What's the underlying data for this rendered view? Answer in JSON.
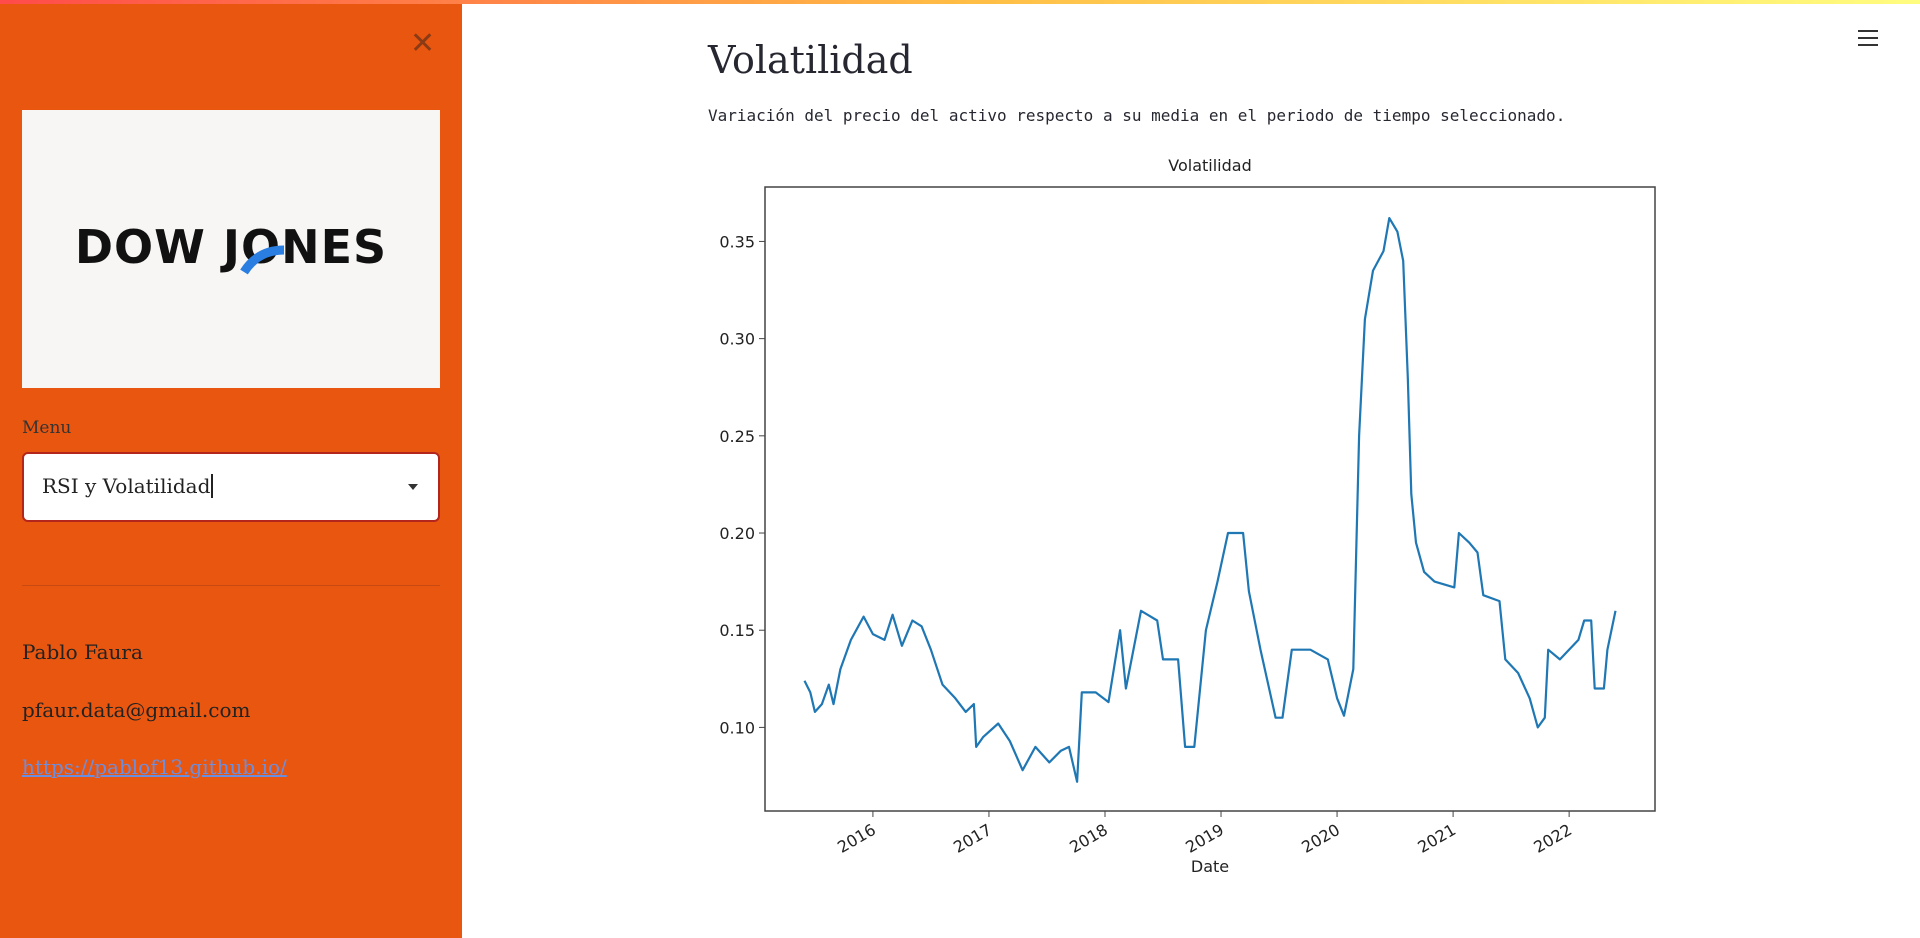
{
  "sidebar": {
    "logo": "DOW JONES",
    "menu_label": "Menu",
    "menu_value": "RSI y Volatilidad",
    "author": "Pablo Faura",
    "email": "pfaur.data@gmail.com",
    "link": "https://pablof13.github.io/"
  },
  "main": {
    "title": "Volatilidad",
    "description": "Variación del precio del activo respecto a su media en el periodo de tiempo seleccionado."
  },
  "chart_data": {
    "type": "line",
    "title": "Volatilidad",
    "x_label": "Date",
    "color": "#1f77b4",
    "x": [
      2015.41,
      2015.46,
      2015.5,
      2015.56,
      2015.62,
      2015.66,
      2015.72,
      2015.81,
      2015.92,
      2016.0,
      2016.1,
      2016.17,
      2016.25,
      2016.34,
      2016.42,
      2016.5,
      2016.6,
      2016.71,
      2016.8,
      2016.87,
      2016.89,
      2016.95,
      2017.08,
      2017.18,
      2017.29,
      2017.4,
      2017.52,
      2017.62,
      2017.69,
      2017.76,
      2017.8,
      2017.92,
      2018.03,
      2018.13,
      2018.18,
      2018.31,
      2018.45,
      2018.5,
      2018.63,
      2018.69,
      2018.77,
      2018.87,
      2018.97,
      2019.06,
      2019.19,
      2019.24,
      2019.34,
      2019.47,
      2019.53,
      2019.61,
      2019.77,
      2019.92,
      2020.0,
      2020.06,
      2020.14,
      2020.19,
      2020.24,
      2020.31,
      2020.4,
      2020.45,
      2020.52,
      2020.57,
      2020.61,
      2020.64,
      2020.68,
      2020.75,
      2020.84,
      2021.01,
      2021.05,
      2021.14,
      2021.21,
      2021.26,
      2021.4,
      2021.45,
      2021.56,
      2021.66,
      2021.73,
      2021.79,
      2021.82,
      2021.92,
      2022.08,
      2022.13,
      2022.19,
      2022.22,
      2022.3,
      2022.33,
      2022.4
    ],
    "values": [
      0.124,
      0.118,
      0.108,
      0.112,
      0.122,
      0.112,
      0.13,
      0.145,
      0.157,
      0.148,
      0.145,
      0.158,
      0.142,
      0.155,
      0.152,
      0.14,
      0.122,
      0.115,
      0.108,
      0.112,
      0.09,
      0.095,
      0.102,
      0.093,
      0.078,
      0.09,
      0.082,
      0.088,
      0.09,
      0.072,
      0.118,
      0.118,
      0.113,
      0.15,
      0.12,
      0.16,
      0.155,
      0.135,
      0.135,
      0.09,
      0.09,
      0.15,
      0.175,
      0.2,
      0.2,
      0.17,
      0.14,
      0.105,
      0.105,
      0.14,
      0.14,
      0.135,
      0.115,
      0.106,
      0.13,
      0.25,
      0.31,
      0.335,
      0.345,
      0.362,
      0.355,
      0.34,
      0.28,
      0.22,
      0.195,
      0.18,
      0.175,
      0.172,
      0.2,
      0.195,
      0.19,
      0.168,
      0.165,
      0.135,
      0.128,
      0.115,
      0.1,
      0.105,
      0.14,
      0.135,
      0.145,
      0.155,
      0.155,
      0.12,
      0.12,
      0.14,
      0.16
    ],
    "xlim": [
      2015.07,
      2022.74
    ],
    "ylim": [
      0.057,
      0.378
    ],
    "xticks": [
      2016,
      2017,
      2018,
      2019,
      2020,
      2021,
      2022
    ],
    "yticks": [
      {
        "value": 0.1,
        "label": "0.10"
      },
      0.15,
      {
        "value": 0.2,
        "label": "0.20"
      },
      0.25,
      {
        "value": 0.3,
        "label": "0.30"
      },
      0.35
    ]
  }
}
